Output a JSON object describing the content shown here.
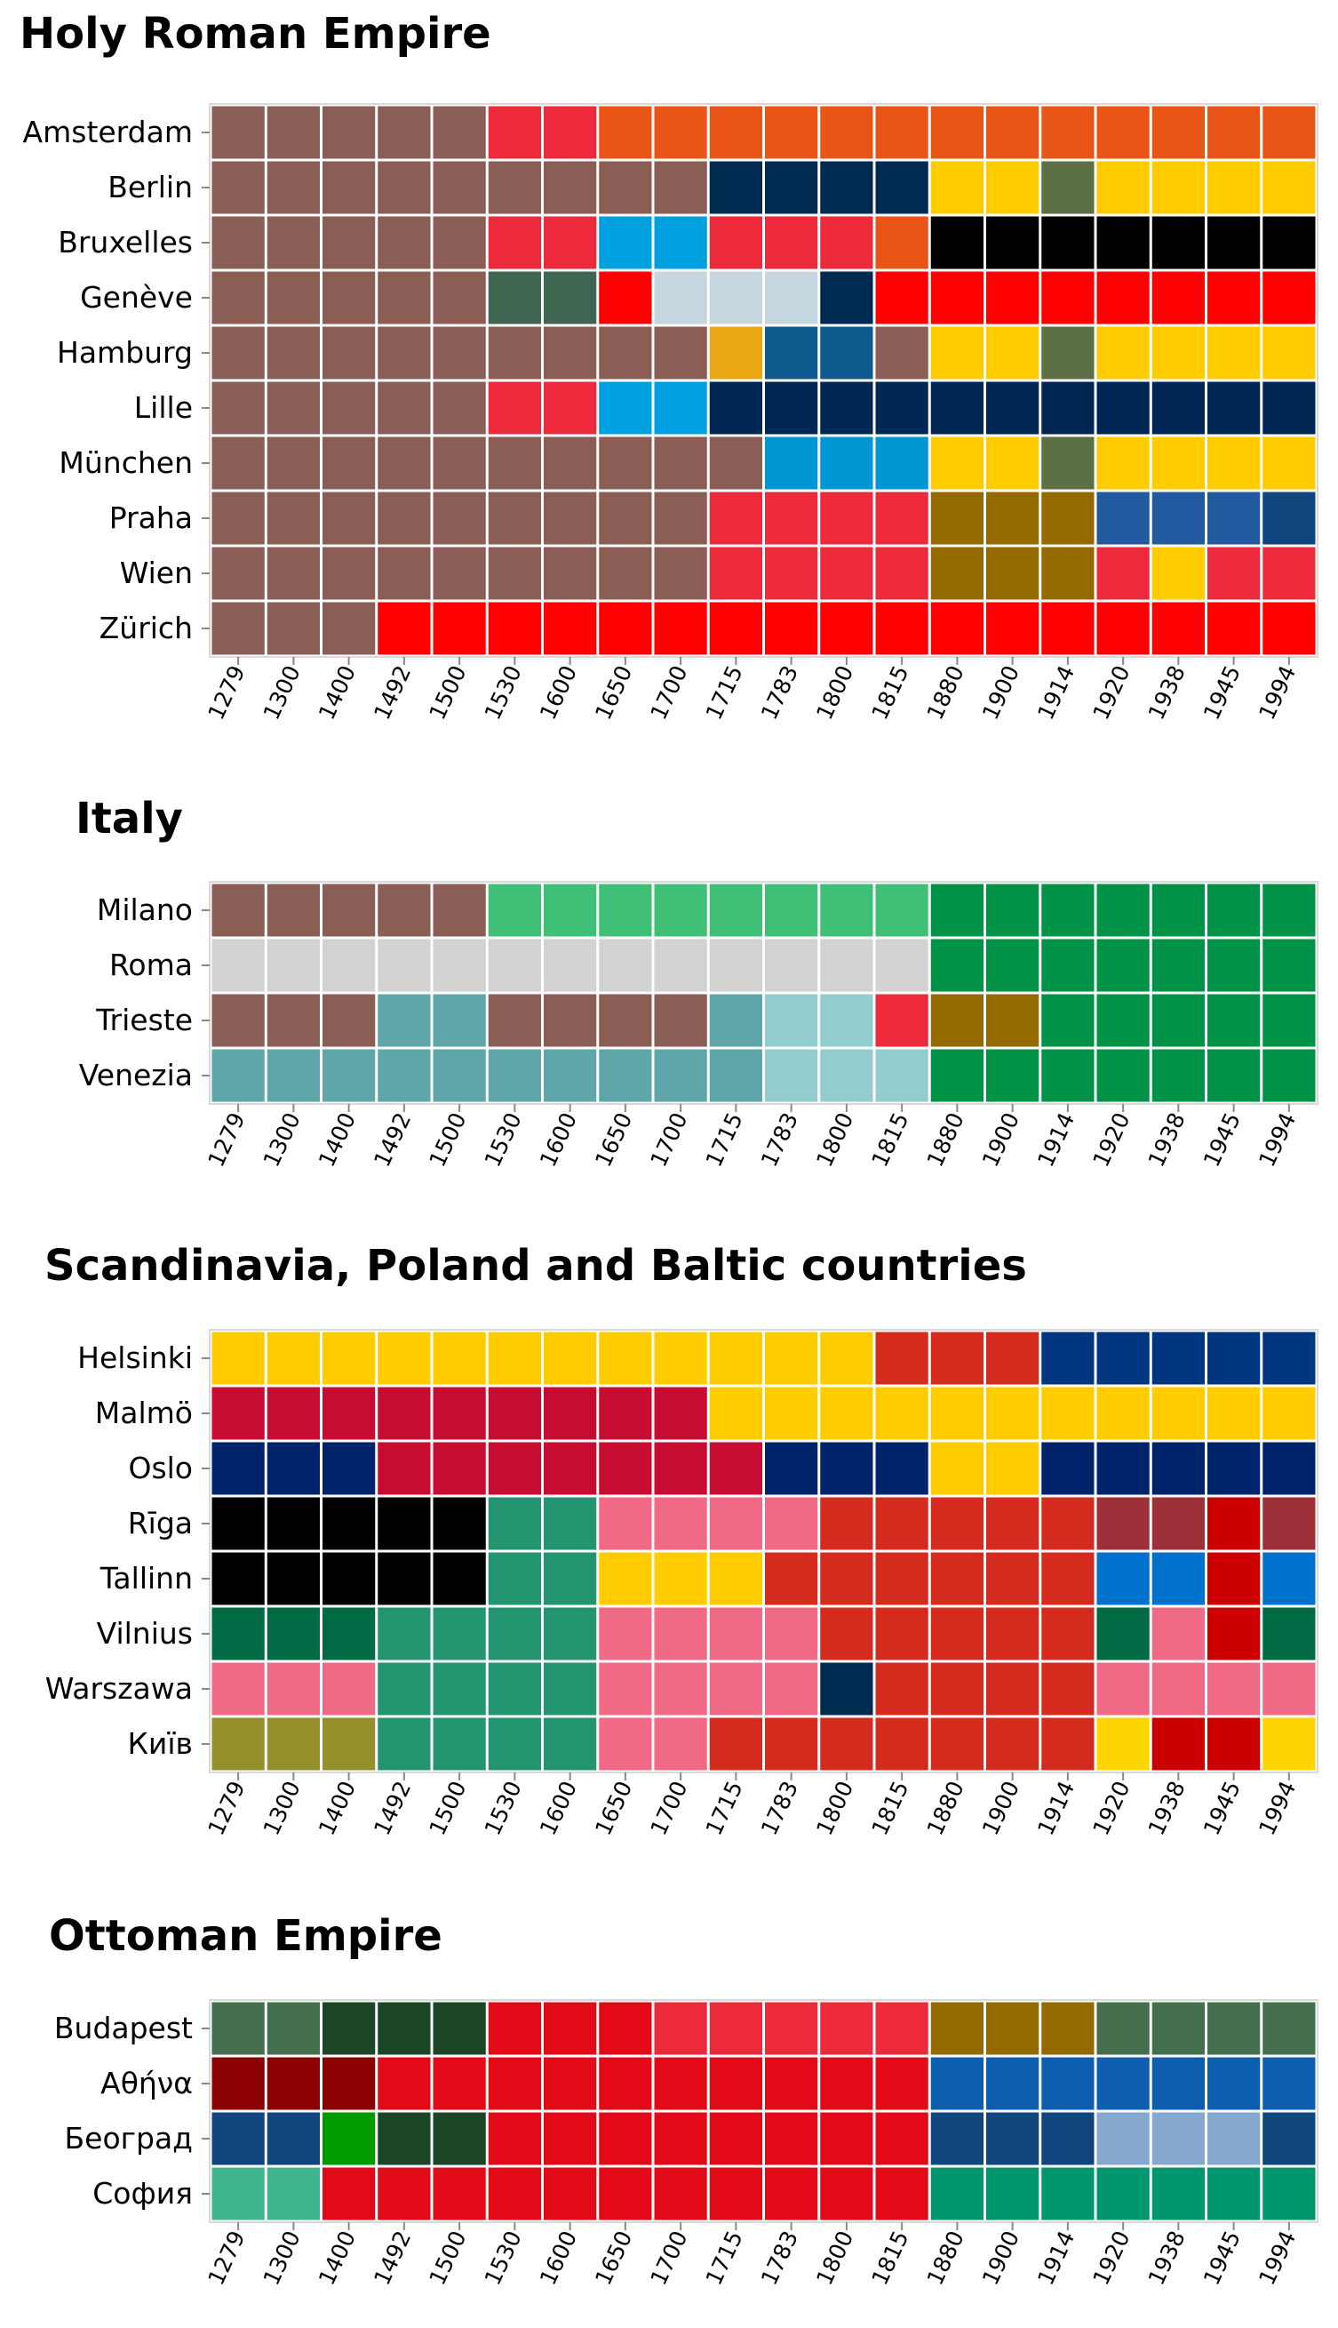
{
  "chart_data": [
    {
      "type": "heatmap",
      "title": "Holy Roman Empire",
      "x": [
        "1279",
        "1300",
        "1400",
        "1492",
        "1500",
        "1530",
        "1600",
        "1650",
        "1700",
        "1715",
        "1783",
        "1800",
        "1815",
        "1880",
        "1900",
        "1914",
        "1920",
        "1938",
        "1945",
        "1994"
      ],
      "rows": [
        {
          "name": "Amsterdam",
          "colors": [
            "#8b5e55",
            "#8b5e55",
            "#8b5e55",
            "#8b5e55",
            "#8b5e55",
            "#ec2a3c",
            "#ec2a3c",
            "#e95516",
            "#e95516",
            "#e95516",
            "#e95516",
            "#e95516",
            "#e95516",
            "#e95516",
            "#e95516",
            "#e95516",
            "#e95516",
            "#e95516",
            "#e95516",
            "#e95516"
          ]
        },
        {
          "name": "Berlin",
          "colors": [
            "#8b5e55",
            "#8b5e55",
            "#8b5e55",
            "#8b5e55",
            "#8b5e55",
            "#8b5e55",
            "#8b5e55",
            "#8b5e55",
            "#8b5e55",
            "#002a50",
            "#002a50",
            "#002a50",
            "#002a50",
            "#ffcc00",
            "#ffcc00",
            "#5d6f45",
            "#ffcc00",
            "#ffcc00",
            "#ffcc00",
            "#ffcc00"
          ]
        },
        {
          "name": "Bruxelles",
          "colors": [
            "#8b5e55",
            "#8b5e55",
            "#8b5e55",
            "#8b5e55",
            "#8b5e55",
            "#ec2a3c",
            "#ec2a3c",
            "#00a0e0",
            "#00a0e0",
            "#ec2a3c",
            "#ec2a3c",
            "#ec2a3c",
            "#e95516",
            "#000000",
            "#000000",
            "#000000",
            "#000000",
            "#000000",
            "#000000",
            "#000000"
          ]
        },
        {
          "name": "Genève",
          "colors": [
            "#8b5e55",
            "#8b5e55",
            "#8b5e55",
            "#8b5e55",
            "#8b5e55",
            "#3f6650",
            "#3f6650",
            "#ff0000",
            "#c5d6de",
            "#c5d6de",
            "#c5d6de",
            "#002a50",
            "#ff0000",
            "#ff0000",
            "#ff0000",
            "#ff0000",
            "#ff0000",
            "#ff0000",
            "#ff0000",
            "#ff0000"
          ]
        },
        {
          "name": "Hamburg",
          "colors": [
            "#8b5e55",
            "#8b5e55",
            "#8b5e55",
            "#8b5e55",
            "#8b5e55",
            "#8b5e55",
            "#8b5e55",
            "#8b5e55",
            "#8b5e55",
            "#e9a713",
            "#0e5a8f",
            "#0e5a8f",
            "#8b5e55",
            "#ffcc00",
            "#ffcc00",
            "#5d6f45",
            "#ffcc00",
            "#ffcc00",
            "#ffcc00",
            "#ffcc00"
          ]
        },
        {
          "name": "Lille",
          "colors": [
            "#8b5e55",
            "#8b5e55",
            "#8b5e55",
            "#8b5e55",
            "#8b5e55",
            "#ec2a3c",
            "#ec2a3c",
            "#00a0e0",
            "#00a0e0",
            "#002654",
            "#002654",
            "#002654",
            "#002654",
            "#002654",
            "#002654",
            "#002654",
            "#002654",
            "#002654",
            "#002654",
            "#002654"
          ]
        },
        {
          "name": "München",
          "colors": [
            "#8b5e55",
            "#8b5e55",
            "#8b5e55",
            "#8b5e55",
            "#8b5e55",
            "#8b5e55",
            "#8b5e55",
            "#8b5e55",
            "#8b5e55",
            "#8b5e55",
            "#0096d6",
            "#0096d6",
            "#0096d6",
            "#ffcc00",
            "#ffcc00",
            "#5d6f45",
            "#ffcc00",
            "#ffcc00",
            "#ffcc00",
            "#ffcc00"
          ]
        },
        {
          "name": "Praha",
          "colors": [
            "#8b5e55",
            "#8b5e55",
            "#8b5e55",
            "#8b5e55",
            "#8b5e55",
            "#8b5e55",
            "#8b5e55",
            "#8b5e55",
            "#8b5e55",
            "#ec2a3c",
            "#ec2a3c",
            "#ec2a3c",
            "#ec2a3c",
            "#946a00",
            "#946a00",
            "#946a00",
            "#225a9f",
            "#225a9f",
            "#225a9f",
            "#11457e"
          ]
        },
        {
          "name": "Wien",
          "colors": [
            "#8b5e55",
            "#8b5e55",
            "#8b5e55",
            "#8b5e55",
            "#8b5e55",
            "#8b5e55",
            "#8b5e55",
            "#8b5e55",
            "#8b5e55",
            "#ec2a3c",
            "#ec2a3c",
            "#ec2a3c",
            "#ec2a3c",
            "#946a00",
            "#946a00",
            "#946a00",
            "#ec2a3c",
            "#ffcc00",
            "#ec2a3c",
            "#ec2a3c"
          ]
        },
        {
          "name": "Zürich",
          "colors": [
            "#8b5e55",
            "#8b5e55",
            "#8b5e55",
            "#ff0000",
            "#ff0000",
            "#ff0000",
            "#ff0000",
            "#ff0000",
            "#ff0000",
            "#ff0000",
            "#ff0000",
            "#ff0000",
            "#ff0000",
            "#ff0000",
            "#ff0000",
            "#ff0000",
            "#ff0000",
            "#ff0000",
            "#ff0000",
            "#ff0000"
          ]
        }
      ]
    },
    {
      "type": "heatmap",
      "title": "Italy",
      "x": [
        "1279",
        "1300",
        "1400",
        "1492",
        "1500",
        "1530",
        "1600",
        "1650",
        "1700",
        "1715",
        "1783",
        "1800",
        "1815",
        "1880",
        "1900",
        "1914",
        "1920",
        "1938",
        "1945",
        "1994"
      ],
      "rows": [
        {
          "name": "Milano",
          "colors": [
            "#8b5e55",
            "#8b5e55",
            "#8b5e55",
            "#8b5e55",
            "#8b5e55",
            "#40c077",
            "#40c077",
            "#40c077",
            "#40c077",
            "#40c077",
            "#40c077",
            "#40c077",
            "#40c077",
            "#009246",
            "#009246",
            "#009246",
            "#009246",
            "#009246",
            "#009246",
            "#009246"
          ]
        },
        {
          "name": "Roma",
          "colors": [
            "#d2d2d2",
            "#d2d2d2",
            "#d2d2d2",
            "#d2d2d2",
            "#d2d2d2",
            "#d2d2d2",
            "#d2d2d2",
            "#d2d2d2",
            "#d2d2d2",
            "#d2d2d2",
            "#d2d2d2",
            "#d2d2d2",
            "#d2d2d2",
            "#009246",
            "#009246",
            "#009246",
            "#009246",
            "#009246",
            "#009246",
            "#009246"
          ]
        },
        {
          "name": "Trieste",
          "colors": [
            "#8b5e55",
            "#8b5e55",
            "#8b5e55",
            "#5fa6ab",
            "#5fa6ab",
            "#8b5e55",
            "#8b5e55",
            "#8b5e55",
            "#8b5e55",
            "#5fa6ab",
            "#93cccf",
            "#93cccf",
            "#ec2a3c",
            "#946a00",
            "#946a00",
            "#009246",
            "#009246",
            "#009246",
            "#009246",
            "#009246"
          ]
        },
        {
          "name": "Venezia",
          "colors": [
            "#5fa6ab",
            "#5fa6ab",
            "#5fa6ab",
            "#5fa6ab",
            "#5fa6ab",
            "#5fa6ab",
            "#5fa6ab",
            "#5fa6ab",
            "#5fa6ab",
            "#5fa6ab",
            "#93cccf",
            "#93cccf",
            "#93cccf",
            "#009246",
            "#009246",
            "#009246",
            "#009246",
            "#009246",
            "#009246",
            "#009246"
          ]
        }
      ]
    },
    {
      "type": "heatmap",
      "title": "Scandinavia, Poland and Baltic countries",
      "x": [
        "1279",
        "1300",
        "1400",
        "1492",
        "1500",
        "1530",
        "1600",
        "1650",
        "1700",
        "1715",
        "1783",
        "1800",
        "1815",
        "1880",
        "1900",
        "1914",
        "1920",
        "1938",
        "1945",
        "1994"
      ],
      "rows": [
        {
          "name": "Helsinki",
          "colors": [
            "#ffcc00",
            "#ffcc00",
            "#ffcc00",
            "#ffcc00",
            "#ffcc00",
            "#ffcc00",
            "#ffcc00",
            "#ffcc00",
            "#ffcc00",
            "#ffcc00",
            "#ffcc00",
            "#ffcc00",
            "#d52b1e",
            "#d52b1e",
            "#d52b1e",
            "#003580",
            "#003580",
            "#003580",
            "#003580",
            "#003580"
          ]
        },
        {
          "name": "Malmö",
          "colors": [
            "#c60c30",
            "#c60c30",
            "#c60c30",
            "#c60c30",
            "#c60c30",
            "#c60c30",
            "#c60c30",
            "#c60c30",
            "#c60c30",
            "#ffcc00",
            "#ffcc00",
            "#ffcc00",
            "#ffcc00",
            "#ffcc00",
            "#ffcc00",
            "#ffcc00",
            "#ffcc00",
            "#ffcc00",
            "#ffcc00",
            "#ffcc00"
          ]
        },
        {
          "name": "Oslo",
          "colors": [
            "#00246b",
            "#00246b",
            "#00246b",
            "#c60c30",
            "#c60c30",
            "#c60c30",
            "#c60c30",
            "#c60c30",
            "#c60c30",
            "#c60c30",
            "#00246b",
            "#00246b",
            "#00246b",
            "#ffcc00",
            "#ffcc00",
            "#00246b",
            "#00246b",
            "#00246b",
            "#00246b",
            "#00246b"
          ]
        },
        {
          "name": "Rīga",
          "colors": [
            "#000000",
            "#000000",
            "#000000",
            "#000000",
            "#000000",
            "#239470",
            "#239470",
            "#f06a85",
            "#f06a85",
            "#f06a85",
            "#f06a85",
            "#d52b1e",
            "#d52b1e",
            "#d52b1e",
            "#d52b1e",
            "#d52b1e",
            "#9e3039",
            "#9e3039",
            "#cc0000",
            "#9e3039"
          ]
        },
        {
          "name": "Tallinn",
          "colors": [
            "#000000",
            "#000000",
            "#000000",
            "#000000",
            "#000000",
            "#239470",
            "#239470",
            "#ffcc00",
            "#ffcc00",
            "#ffcc00",
            "#d52b1e",
            "#d52b1e",
            "#d52b1e",
            "#d52b1e",
            "#d52b1e",
            "#d52b1e",
            "#0072ce",
            "#0072ce",
            "#cc0000",
            "#0072ce"
          ]
        },
        {
          "name": "Vilnius",
          "colors": [
            "#006a44",
            "#006a44",
            "#006a44",
            "#239470",
            "#239470",
            "#239470",
            "#239470",
            "#f06a85",
            "#f06a85",
            "#f06a85",
            "#f06a85",
            "#d52b1e",
            "#d52b1e",
            "#d52b1e",
            "#d52b1e",
            "#d52b1e",
            "#006a44",
            "#f06a85",
            "#cc0000",
            "#006a44"
          ]
        },
        {
          "name": "Warszawa",
          "colors": [
            "#f06a85",
            "#f06a85",
            "#f06a85",
            "#239470",
            "#239470",
            "#239470",
            "#239470",
            "#f06a85",
            "#f06a85",
            "#f06a85",
            "#f06a85",
            "#002a50",
            "#d52b1e",
            "#d52b1e",
            "#d52b1e",
            "#d52b1e",
            "#f06a85",
            "#f06a85",
            "#f06a85",
            "#f06a85"
          ]
        },
        {
          "name": "Київ",
          "colors": [
            "#958f2c",
            "#958f2c",
            "#958f2c",
            "#239470",
            "#239470",
            "#239470",
            "#239470",
            "#f06a85",
            "#f06a85",
            "#d52b1e",
            "#d52b1e",
            "#d52b1e",
            "#d52b1e",
            "#d52b1e",
            "#d52b1e",
            "#d52b1e",
            "#ffd500",
            "#cc0000",
            "#cc0000",
            "#ffd500"
          ]
        }
      ]
    },
    {
      "type": "heatmap",
      "title": "Ottoman Empire",
      "x": [
        "1279",
        "1300",
        "1400",
        "1492",
        "1500",
        "1530",
        "1600",
        "1650",
        "1700",
        "1715",
        "1783",
        "1800",
        "1815",
        "1880",
        "1900",
        "1914",
        "1920",
        "1938",
        "1945",
        "1994"
      ],
      "rows": [
        {
          "name": "Budapest",
          "colors": [
            "#436f4d",
            "#436f4d",
            "#1a4526",
            "#1a4526",
            "#1a4526",
            "#e30a17",
            "#e30a17",
            "#e30a17",
            "#ec2a3c",
            "#ec2a3c",
            "#ec2a3c",
            "#ec2a3c",
            "#ec2a3c",
            "#946a00",
            "#946a00",
            "#946a00",
            "#436f4d",
            "#436f4d",
            "#436f4d",
            "#436f4d"
          ]
        },
        {
          "name": "Αθήνα",
          "colors": [
            "#8b0000",
            "#8b0000",
            "#8b0000",
            "#e30a17",
            "#e30a17",
            "#e30a17",
            "#e30a17",
            "#e30a17",
            "#e30a17",
            "#e30a17",
            "#e30a17",
            "#e30a17",
            "#e30a17",
            "#0d5eaf",
            "#0d5eaf",
            "#0d5eaf",
            "#0d5eaf",
            "#0d5eaf",
            "#0d5eaf",
            "#0d5eaf"
          ]
        },
        {
          "name": "Београд",
          "colors": [
            "#11457e",
            "#11457e",
            "#009b00",
            "#1a4526",
            "#1a4526",
            "#e30a17",
            "#e30a17",
            "#e30a17",
            "#e30a17",
            "#e30a17",
            "#e30a17",
            "#e30a17",
            "#e30a17",
            "#11457e",
            "#11457e",
            "#11457e",
            "#86a8cf",
            "#86a8cf",
            "#86a8cf",
            "#11457e"
          ]
        },
        {
          "name": "София",
          "colors": [
            "#3fb58e",
            "#3fb58e",
            "#e30a17",
            "#e30a17",
            "#e30a17",
            "#e30a17",
            "#e30a17",
            "#e30a17",
            "#e30a17",
            "#e30a17",
            "#e30a17",
            "#e30a17",
            "#e30a17",
            "#00966e",
            "#00966e",
            "#00966e",
            "#00966e",
            "#00966e",
            "#00966e",
            "#00966e"
          ]
        }
      ]
    }
  ]
}
